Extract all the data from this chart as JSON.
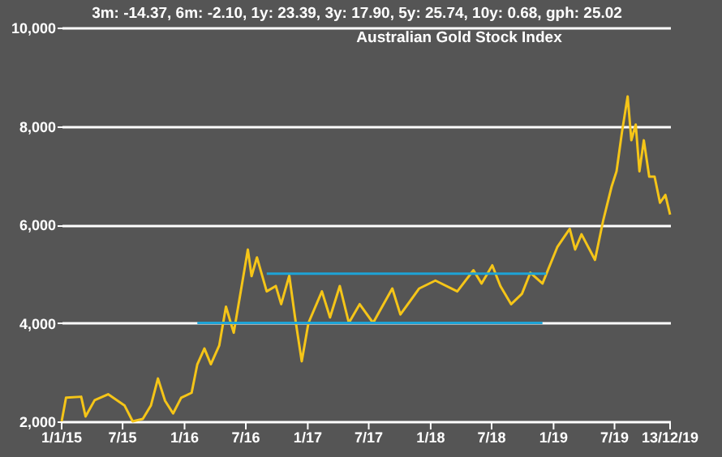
{
  "chart_data": {
    "type": "line",
    "title": "Australian Gold Stock Index",
    "subtitle": "3m: -14.37,   6m: -2.10,   1y: 23.39,   3y: 17.90,   5y: 25.74,   10y: 0.68,   gph: 25.02",
    "xlim": [
      "2015-01-01",
      "2019-12-13"
    ],
    "xticks": [
      {
        "value": "2015-01-01",
        "label": "1/1/15"
      },
      {
        "value": "2015-07-01",
        "label": "7/15"
      },
      {
        "value": "2016-01-01",
        "label": "1/16"
      },
      {
        "value": "2016-07-01",
        "label": "7/16"
      },
      {
        "value": "2017-01-01",
        "label": "1/17"
      },
      {
        "value": "2017-07-01",
        "label": "7/17"
      },
      {
        "value": "2018-01-01",
        "label": "1/18"
      },
      {
        "value": "2018-07-01",
        "label": "7/18"
      },
      {
        "value": "2019-01-01",
        "label": "1/19"
      },
      {
        "value": "2019-07-01",
        "label": "7/19"
      },
      {
        "value": "2019-12-13",
        "label": "13/12/19"
      }
    ],
    "ylim": [
      2000,
      10000
    ],
    "yticks": [
      {
        "value": 2000,
        "label": "2,000"
      },
      {
        "value": 4000,
        "label": "4,000"
      },
      {
        "value": 6000,
        "label": "6,000"
      },
      {
        "value": 8000,
        "label": "8,000"
      },
      {
        "value": 10000,
        "label": "10,000"
      }
    ],
    "grid": "y",
    "marker": "none",
    "line_style": "solid",
    "series": [
      {
        "color": "#f5c518",
        "x": [
          "2015-01-01",
          "2015-01-14",
          "2015-02-28",
          "2015-03-13",
          "2015-04-09",
          "2015-05-19",
          "2015-07-07",
          "2015-07-31",
          "2015-08-30",
          "2015-09-23",
          "2015-10-14",
          "2015-11-04",
          "2015-11-28",
          "2015-12-22",
          "2016-01-22",
          "2016-02-08",
          "2016-02-29",
          "2016-03-19",
          "2016-04-13",
          "2016-05-03",
          "2016-05-26",
          "2016-06-16",
          "2016-07-07",
          "2016-07-18",
          "2016-08-03",
          "2016-09-01",
          "2016-09-28",
          "2016-10-14",
          "2016-11-07",
          "2016-11-24",
          "2016-12-14",
          "2017-01-03",
          "2017-02-12",
          "2017-03-08",
          "2017-04-06",
          "2017-05-03",
          "2017-06-04",
          "2017-07-14",
          "2017-09-09",
          "2017-10-03",
          "2017-11-28",
          "2018-01-15",
          "2018-03-21",
          "2018-05-08",
          "2018-06-01",
          "2018-07-03",
          "2018-07-27",
          "2018-08-28",
          "2018-09-29",
          "2018-10-24",
          "2018-11-29",
          "2019-01-12",
          "2019-02-18",
          "2019-03-06",
          "2019-03-25",
          "2019-05-04",
          "2019-05-28",
          "2019-06-22",
          "2019-07-07",
          "2019-07-23",
          "2019-08-09",
          "2019-08-20",
          "2019-09-02",
          "2019-09-13",
          "2019-09-26",
          "2019-10-12",
          "2019-10-28",
          "2019-11-13",
          "2019-11-29",
          "2019-12-13"
        ],
        "values": [
          2000,
          2480,
          2500,
          2100,
          2430,
          2550,
          2320,
          2000,
          2050,
          2320,
          2870,
          2420,
          2160,
          2480,
          2580,
          3160,
          3480,
          3160,
          3540,
          4330,
          3800,
          4640,
          5490,
          4950,
          5330,
          4640,
          4750,
          4380,
          4960,
          4120,
          3220,
          4000,
          4640,
          4110,
          4750,
          4000,
          4380,
          4000,
          4700,
          4170,
          4700,
          4860,
          4640,
          5070,
          4800,
          5170,
          4750,
          4380,
          4590,
          5020,
          4800,
          5540,
          5910,
          5490,
          5800,
          5280,
          6070,
          6760,
          7080,
          7870,
          8600,
          7710,
          8030,
          7080,
          7710,
          6970,
          6970,
          6440,
          6600,
          6200
        ]
      },
      {
        "color": "#1ea3d6",
        "x": [
          "2016-02-08",
          "2018-11-29"
        ],
        "values": [
          4000,
          4000
        ]
      },
      {
        "color": "#1ea3d6",
        "x": [
          "2016-09-01",
          "2018-12-10"
        ],
        "values": [
          5000,
          5000
        ]
      }
    ]
  }
}
